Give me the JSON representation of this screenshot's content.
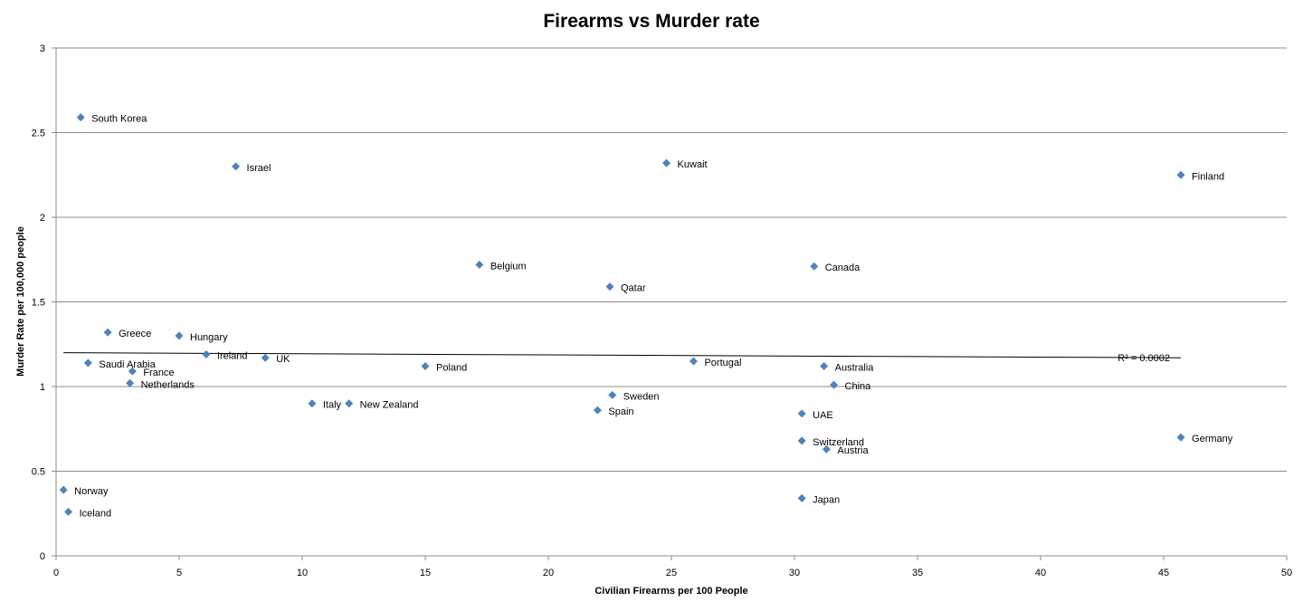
{
  "chart_data": {
    "type": "scatter",
    "title": "Firearms vs Murder rate",
    "xlabel": "Civilian  Firearms per 100 People",
    "ylabel": "Murder Rate  per 100,000 people",
    "xlim": [
      0,
      50
    ],
    "ylim": [
      0,
      3
    ],
    "xticks": [
      0,
      5,
      10,
      15,
      20,
      25,
      30,
      35,
      40,
      45,
      50
    ],
    "yticks": [
      0,
      0.5,
      1,
      1.5,
      2,
      2.5,
      3
    ],
    "grid": "horizontal",
    "marker": "diamond",
    "color": "#4f81bd",
    "points": [
      {
        "label": "South Korea",
        "x": 1.0,
        "y": 2.59
      },
      {
        "label": "Israel",
        "x": 7.3,
        "y": 2.3
      },
      {
        "label": "Kuwait",
        "x": 24.8,
        "y": 2.32
      },
      {
        "label": "Finland",
        "x": 45.7,
        "y": 2.25
      },
      {
        "label": "Belgium",
        "x": 17.2,
        "y": 1.72
      },
      {
        "label": "Canada",
        "x": 30.8,
        "y": 1.71
      },
      {
        "label": "Qatar",
        "x": 22.5,
        "y": 1.59
      },
      {
        "label": "Greece",
        "x": 2.1,
        "y": 1.32
      },
      {
        "label": "Hungary",
        "x": 5.0,
        "y": 1.3
      },
      {
        "label": "Ireland",
        "x": 6.1,
        "y": 1.19
      },
      {
        "label": "UK",
        "x": 8.5,
        "y": 1.17
      },
      {
        "label": "Saudi Arabia",
        "x": 1.3,
        "y": 1.14
      },
      {
        "label": "France",
        "x": 3.1,
        "y": 1.09
      },
      {
        "label": "Netherlands",
        "x": 3.0,
        "y": 1.02
      },
      {
        "label": "Poland",
        "x": 15.0,
        "y": 1.12
      },
      {
        "label": "Portugal",
        "x": 25.9,
        "y": 1.15
      },
      {
        "label": "Australia",
        "x": 31.2,
        "y": 1.12
      },
      {
        "label": "China",
        "x": 31.6,
        "y": 1.01
      },
      {
        "label": "Italy",
        "x": 10.4,
        "y": 0.9
      },
      {
        "label": "New Zealand",
        "x": 11.9,
        "y": 0.9
      },
      {
        "label": "Sweden",
        "x": 22.6,
        "y": 0.95
      },
      {
        "label": "Spain",
        "x": 22.0,
        "y": 0.86
      },
      {
        "label": "UAE",
        "x": 30.3,
        "y": 0.84
      },
      {
        "label": "Switzerland",
        "x": 30.3,
        "y": 0.68
      },
      {
        "label": "Austria",
        "x": 31.3,
        "y": 0.63
      },
      {
        "label": "Germany",
        "x": 45.7,
        "y": 0.7
      },
      {
        "label": "Japan",
        "x": 30.3,
        "y": 0.34
      },
      {
        "label": "Norway",
        "x": 0.3,
        "y": 0.39
      },
      {
        "label": "Iceland",
        "x": 0.5,
        "y": 0.26
      }
    ],
    "trendline": {
      "type": "linear",
      "x": [
        0.3,
        45.7
      ],
      "y": [
        1.2,
        1.17
      ],
      "equation_label": "R² = 0.0002"
    }
  }
}
